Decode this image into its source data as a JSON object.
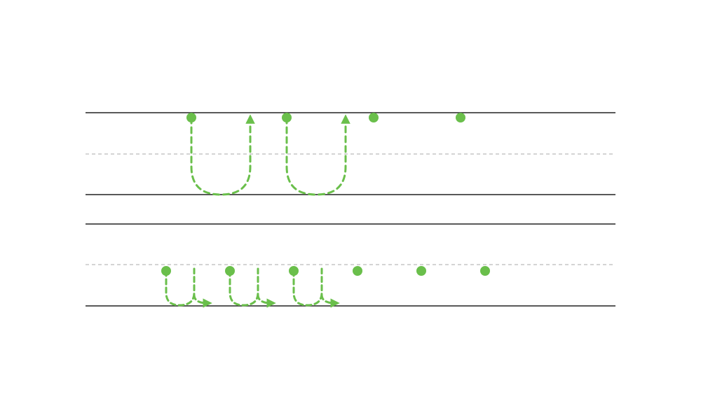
{
  "colors": {
    "background": "#ffffff",
    "guide_line": "#222222",
    "midline": "#bbbbbb",
    "stroke": "#6abf4b"
  },
  "worksheet": {
    "rows": [
      {
        "name": "large-u-row",
        "letter_shape": "u",
        "traced_letters": 2,
        "start_dots": 4
      },
      {
        "name": "small-u-row",
        "letter_shape": "u",
        "traced_letters": 3,
        "start_dots": 6
      }
    ]
  }
}
